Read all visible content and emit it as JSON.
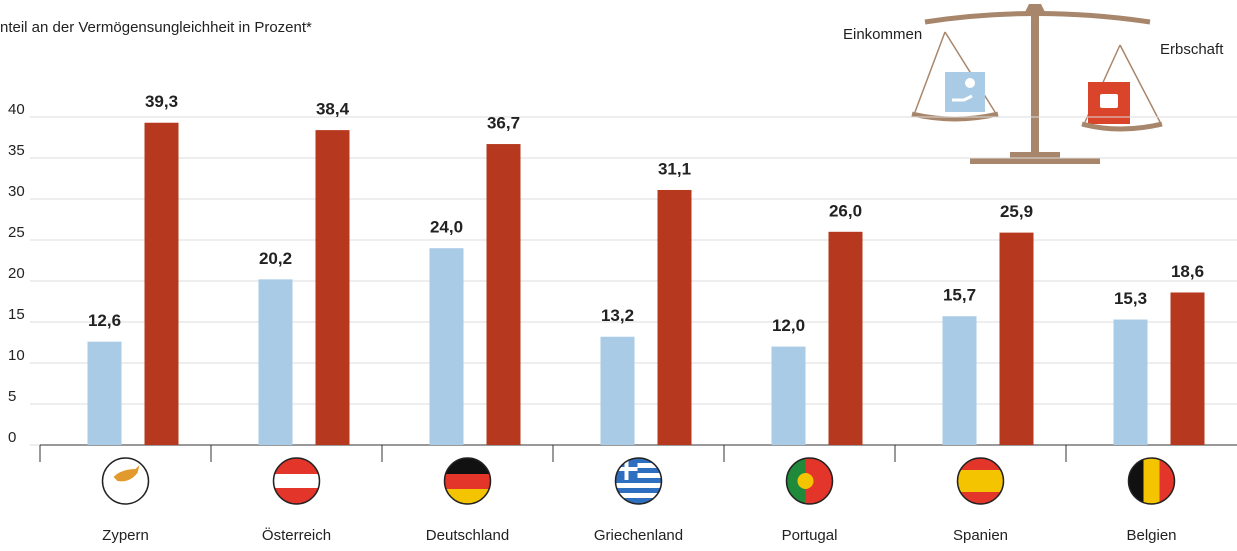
{
  "chart_data": {
    "type": "bar",
    "title": "nteil an der Vermögensungleichheit in Prozent*",
    "categories": [
      "Zypern",
      "Österreich",
      "Deutschland",
      "Griechenland",
      "Portugal",
      "Spanien",
      "Belgien"
    ],
    "series": [
      {
        "name": "Einkommen",
        "color": "#a9cbe6",
        "values": [
          12.6,
          20.2,
          24.0,
          13.2,
          12.0,
          15.7,
          15.3
        ],
        "value_labels": [
          "12,6",
          "20,2",
          "24,0",
          "13,2",
          "12,0",
          "15,7",
          "15,3"
        ]
      },
      {
        "name": "Erbschaft",
        "color": "#b5381f",
        "values": [
          39.3,
          38.4,
          36.7,
          31.1,
          26.0,
          25.9,
          18.6
        ],
        "value_labels": [
          "39,3",
          "38,4",
          "36,7",
          "31,1",
          "26,0",
          "25,9",
          "18,6"
        ]
      }
    ],
    "ylim": [
      0,
      40
    ],
    "yticks": [
      0,
      5,
      10,
      15,
      20,
      25,
      30,
      35,
      40
    ],
    "grid": true
  }
}
